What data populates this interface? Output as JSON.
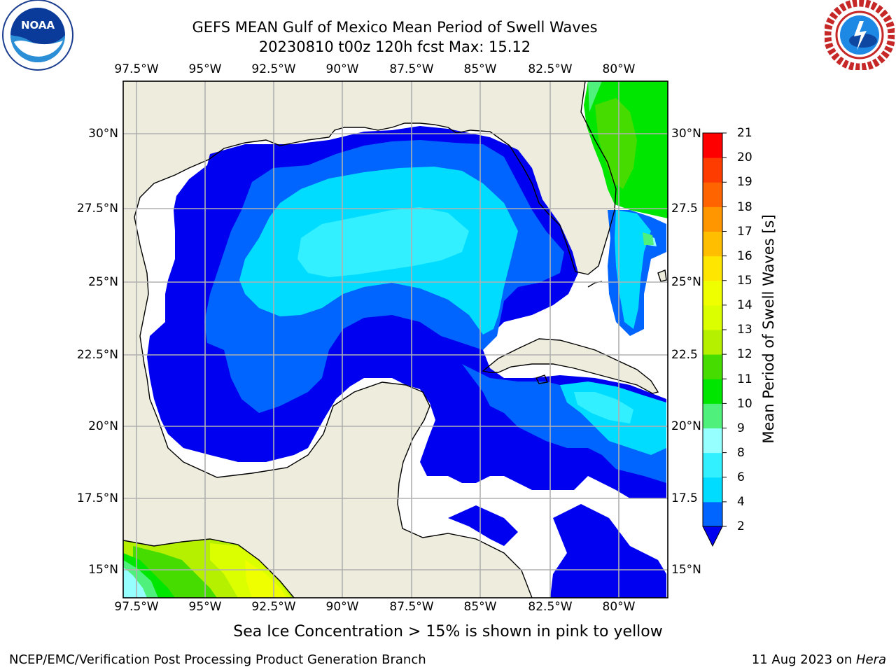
{
  "title": {
    "line1": "GEFS MEAN Gulf of Mexico Mean Period of Swell Waves",
    "line2": "20230810 t00z 120h fcst   Max: 15.12"
  },
  "map": {
    "lon_ticks": [
      "97.5°W",
      "95°W",
      "92.5°W",
      "90°W",
      "87.5°W",
      "85°W",
      "82.5°W",
      "80°W"
    ],
    "lat_ticks_left": [
      "30°N",
      "27.5°N",
      "25°N",
      "22.5°N",
      "20°N",
      "17.5°N",
      "15°N"
    ],
    "lat_ticks_right": [
      "30°N",
      "27.5",
      "25°N",
      "22.5",
      "20°N",
      "17.5",
      "15°N"
    ],
    "colors": {
      "land": "#eeecdc",
      "ocean_undefined": "#ffffff",
      "grid": "#b0b0b0",
      "coast": "#000000"
    }
  },
  "colorbar": {
    "label": "Mean Period of Swell Waves [s]",
    "ticks": [
      "21",
      "20",
      "19",
      "18",
      "17",
      "16",
      "15",
      "14",
      "13",
      "12",
      "11",
      "10",
      "9",
      "8",
      "6",
      "4",
      "2"
    ],
    "levels": [
      {
        "range": "2-4",
        "color": "#0064ff"
      },
      {
        "range": "4-6",
        "color": "#00dcff"
      },
      {
        "range": "6-8",
        "color": "#32f0ff"
      },
      {
        "range": "8-9",
        "color": "#96ffff"
      },
      {
        "range": "9-10",
        "color": "#50f07c"
      },
      {
        "range": "10-11",
        "color": "#00e600"
      },
      {
        "range": "11-12",
        "color": "#46dc00"
      },
      {
        "range": "12-13",
        "color": "#b4f000"
      },
      {
        "range": "13-14",
        "color": "#dcff00"
      },
      {
        "range": "14-15",
        "color": "#f0ff00"
      },
      {
        "range": "15-16",
        "color": "#ffe600"
      },
      {
        "range": "16-17",
        "color": "#ffbe00"
      },
      {
        "range": "17-18",
        "color": "#ff9600"
      },
      {
        "range": "18-19",
        "color": "#ff6400"
      },
      {
        "range": "19-20",
        "color": "#ff3c00"
      },
      {
        "range": "20-21",
        "color": "#ff0000"
      }
    ],
    "under_color": "#0000f0"
  },
  "note": "Sea Ice Concentration > 15% is shown in pink to yellow",
  "footer": {
    "left": "NCEP/EMC/Verification Post Processing Product Generation Branch",
    "date": "11 Aug 2023 on ",
    "machine": "Hera"
  },
  "logos": {
    "left": "noaa-logo",
    "right": "nws-logo"
  }
}
